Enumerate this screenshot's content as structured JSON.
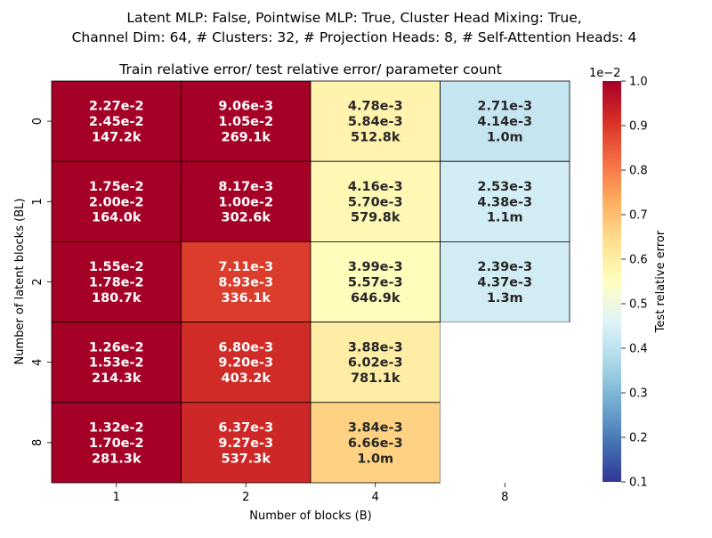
{
  "chart_data": {
    "type": "heatmap",
    "suptitle_lines": [
      "Latent MLP: False, Pointwise MLP: True, Cluster Head Mixing: True,",
      "Channel Dim: 64, # Clusters: 32, # Projection Heads: 8, # Self-Attention Heads: 4"
    ],
    "title": "Train relative error/ test relative error/ parameter count",
    "xlabel": "Number of blocks (B)",
    "ylabel": "Number of latent blocks (BL)",
    "x_categories": [
      "1",
      "2",
      "4",
      "8"
    ],
    "y_categories": [
      "0",
      "1",
      "2",
      "4",
      "8"
    ],
    "colorbar": {
      "label": "Test relative error",
      "scale_label": "1e−2",
      "range": [
        0.1,
        1.0
      ],
      "ticks": [
        "0.1",
        "0.2",
        "0.3",
        "0.4",
        "0.5",
        "0.6",
        "0.7",
        "0.8",
        "0.9",
        "1.0"
      ],
      "colormap": "RdYlBu_r"
    },
    "cells": [
      [
        {
          "color_value": 1.0,
          "lines": [
            "2.27e-2",
            "2.45e-2",
            "147.2k"
          ]
        },
        {
          "color_value": 1.0,
          "lines": [
            "9.06e-3",
            "1.05e-2",
            "269.1k"
          ]
        },
        {
          "color_value": 0.584,
          "lines": [
            "4.78e-3",
            "5.84e-3",
            "512.8k"
          ]
        },
        {
          "color_value": 0.414,
          "lines": [
            "2.71e-3",
            "4.14e-3",
            "1.0m"
          ]
        }
      ],
      [
        {
          "color_value": 1.0,
          "lines": [
            "1.75e-2",
            "2.00e-2",
            "164.0k"
          ]
        },
        {
          "color_value": 1.0,
          "lines": [
            "8.17e-3",
            "1.00e-2",
            "302.6k"
          ]
        },
        {
          "color_value": 0.57,
          "lines": [
            "4.16e-3",
            "5.70e-3",
            "579.8k"
          ]
        },
        {
          "color_value": 0.438,
          "lines": [
            "2.53e-3",
            "4.38e-3",
            "1.1m"
          ]
        }
      ],
      [
        {
          "color_value": 1.0,
          "lines": [
            "1.55e-2",
            "1.78e-2",
            "180.7k"
          ]
        },
        {
          "color_value": 0.893,
          "lines": [
            "7.11e-3",
            "8.93e-3",
            "336.1k"
          ]
        },
        {
          "color_value": 0.557,
          "lines": [
            "3.99e-3",
            "5.57e-3",
            "646.9k"
          ]
        },
        {
          "color_value": 0.437,
          "lines": [
            "2.39e-3",
            "4.37e-3",
            "1.3m"
          ]
        }
      ],
      [
        {
          "color_value": 1.0,
          "lines": [
            "1.26e-2",
            "1.53e-2",
            "214.3k"
          ]
        },
        {
          "color_value": 0.92,
          "lines": [
            "6.80e-3",
            "9.20e-3",
            "403.2k"
          ]
        },
        {
          "color_value": 0.602,
          "lines": [
            "3.88e-3",
            "6.02e-3",
            "781.1k"
          ]
        },
        null
      ],
      [
        {
          "color_value": 1.0,
          "lines": [
            "1.32e-2",
            "1.70e-2",
            "281.3k"
          ]
        },
        {
          "color_value": 0.927,
          "lines": [
            "6.37e-3",
            "9.27e-3",
            "537.3k"
          ]
        },
        {
          "color_value": 0.666,
          "lines": [
            "3.84e-3",
            "6.66e-3",
            "1.0m"
          ]
        },
        null
      ]
    ]
  }
}
